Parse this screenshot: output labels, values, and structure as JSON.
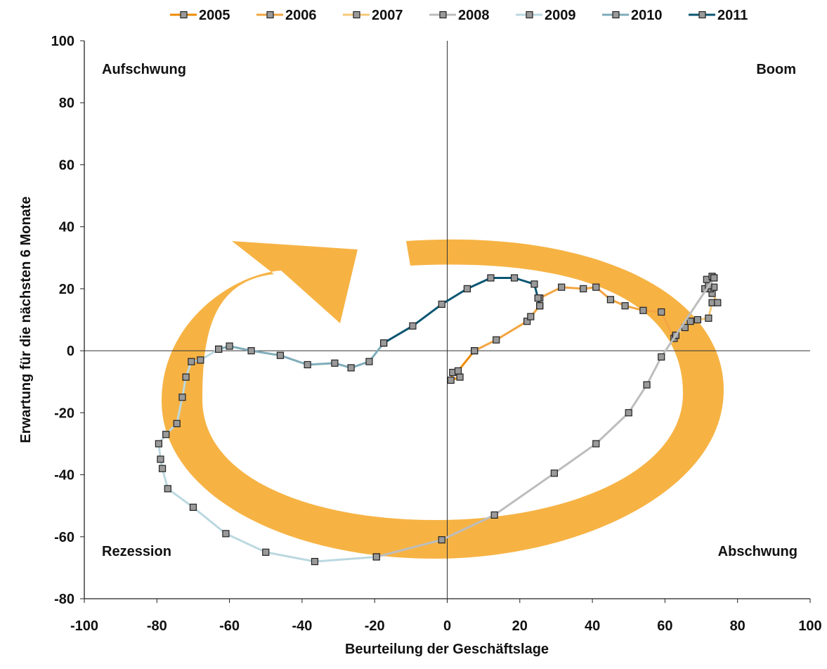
{
  "chart_data": {
    "type": "line",
    "title": "",
    "xlabel": "Beurteilung der Geschäftslage",
    "ylabel": "Erwartung für die nächsten 6 Monate",
    "xlim": [
      -100,
      100
    ],
    "ylim": [
      -80,
      100
    ],
    "xticks": [
      -100,
      -80,
      -60,
      -40,
      -20,
      0,
      20,
      40,
      60,
      80,
      100
    ],
    "yticks": [
      -80,
      -60,
      -40,
      -20,
      0,
      20,
      40,
      60,
      80,
      100
    ],
    "grid": false,
    "legend": "top",
    "quadrants": {
      "top_left": "Aufschwung",
      "top_right": "Boom",
      "bottom_left": "Rezession",
      "bottom_right": "Abschwung"
    },
    "series": [
      {
        "name": "2005",
        "color": "#ED8B00",
        "points": [
          [
            3.5,
            -8.5
          ],
          [
            1,
            -9.5
          ],
          [
            1.5,
            -7
          ],
          [
            3,
            -6.5
          ],
          [
            7.5,
            0
          ]
        ]
      },
      {
        "name": "2006",
        "color": "#F2A541",
        "points": [
          [
            7.5,
            0
          ],
          [
            13.5,
            3.5
          ],
          [
            22,
            9.5
          ],
          [
            23,
            11
          ],
          [
            25.5,
            14.5
          ],
          [
            25.5,
            17
          ],
          [
            31.5,
            20.5
          ],
          [
            37.5,
            20
          ],
          [
            41,
            20.5
          ],
          [
            45,
            16.5
          ],
          [
            49,
            14.5
          ],
          [
            54,
            13
          ],
          [
            59,
            12.5
          ],
          [
            62.5,
            4
          ],
          [
            63,
            5
          ]
        ]
      },
      {
        "name": "2007",
        "color": "#F7C978",
        "points": [
          [
            63,
            5
          ],
          [
            65.5,
            7.5
          ],
          [
            67,
            9.5
          ],
          [
            69,
            10
          ],
          [
            72,
            10.5
          ],
          [
            73,
            15.5
          ],
          [
            74.5,
            15.5
          ],
          [
            73,
            18.5
          ],
          [
            72.5,
            20
          ],
          [
            73.5,
            20.5
          ],
          [
            71,
            20
          ],
          [
            72,
            21
          ],
          [
            71.5,
            23
          ],
          [
            73,
            24
          ],
          [
            73.5,
            23.5
          ]
        ]
      },
      {
        "name": "2008",
        "color": "#BDBDBD",
        "points": [
          [
            73.5,
            23.5
          ],
          [
            59,
            -2
          ],
          [
            55,
            -11
          ],
          [
            50,
            -20
          ],
          [
            41,
            -30
          ],
          [
            29.5,
            -39.5
          ],
          [
            13,
            -53
          ],
          [
            -1.5,
            -61
          ],
          [
            -19.5,
            -66.5
          ]
        ]
      },
      {
        "name": "2009",
        "color": "#BCD8E0",
        "points": [
          [
            -19.5,
            -66.5
          ],
          [
            -36.5,
            -68
          ],
          [
            -50,
            -65
          ],
          [
            -61,
            -59
          ],
          [
            -70,
            -50.5
          ],
          [
            -77,
            -44.5
          ],
          [
            -78.5,
            -38
          ],
          [
            -79,
            -35
          ],
          [
            -79.5,
            -30
          ],
          [
            -77.5,
            -27
          ],
          [
            -74.5,
            -23.5
          ],
          [
            -73,
            -15
          ],
          [
            -72,
            -8.5
          ],
          [
            -70.5,
            -3.5
          ],
          [
            -68,
            -3
          ],
          [
            -63,
            0.5
          ]
        ]
      },
      {
        "name": "2010",
        "color": "#7FACBA",
        "points": [
          [
            -63,
            0.5
          ],
          [
            -60,
            1.5
          ],
          [
            -54,
            0
          ],
          [
            -46,
            -1.5
          ],
          [
            -38.5,
            -4.5
          ],
          [
            -31,
            -4
          ],
          [
            -26.5,
            -5.5
          ],
          [
            -21.5,
            -3.5
          ],
          [
            -17.5,
            2.5
          ]
        ]
      },
      {
        "name": "2011",
        "color": "#0B5672",
        "points": [
          [
            -17.5,
            2.5
          ],
          [
            -9.5,
            8
          ],
          [
            -1.5,
            15
          ],
          [
            5.5,
            20
          ],
          [
            12,
            23.5
          ],
          [
            18.5,
            23.5
          ],
          [
            24,
            21.5
          ],
          [
            25,
            17
          ],
          [
            25.5,
            14.5
          ]
        ]
      }
    ]
  }
}
